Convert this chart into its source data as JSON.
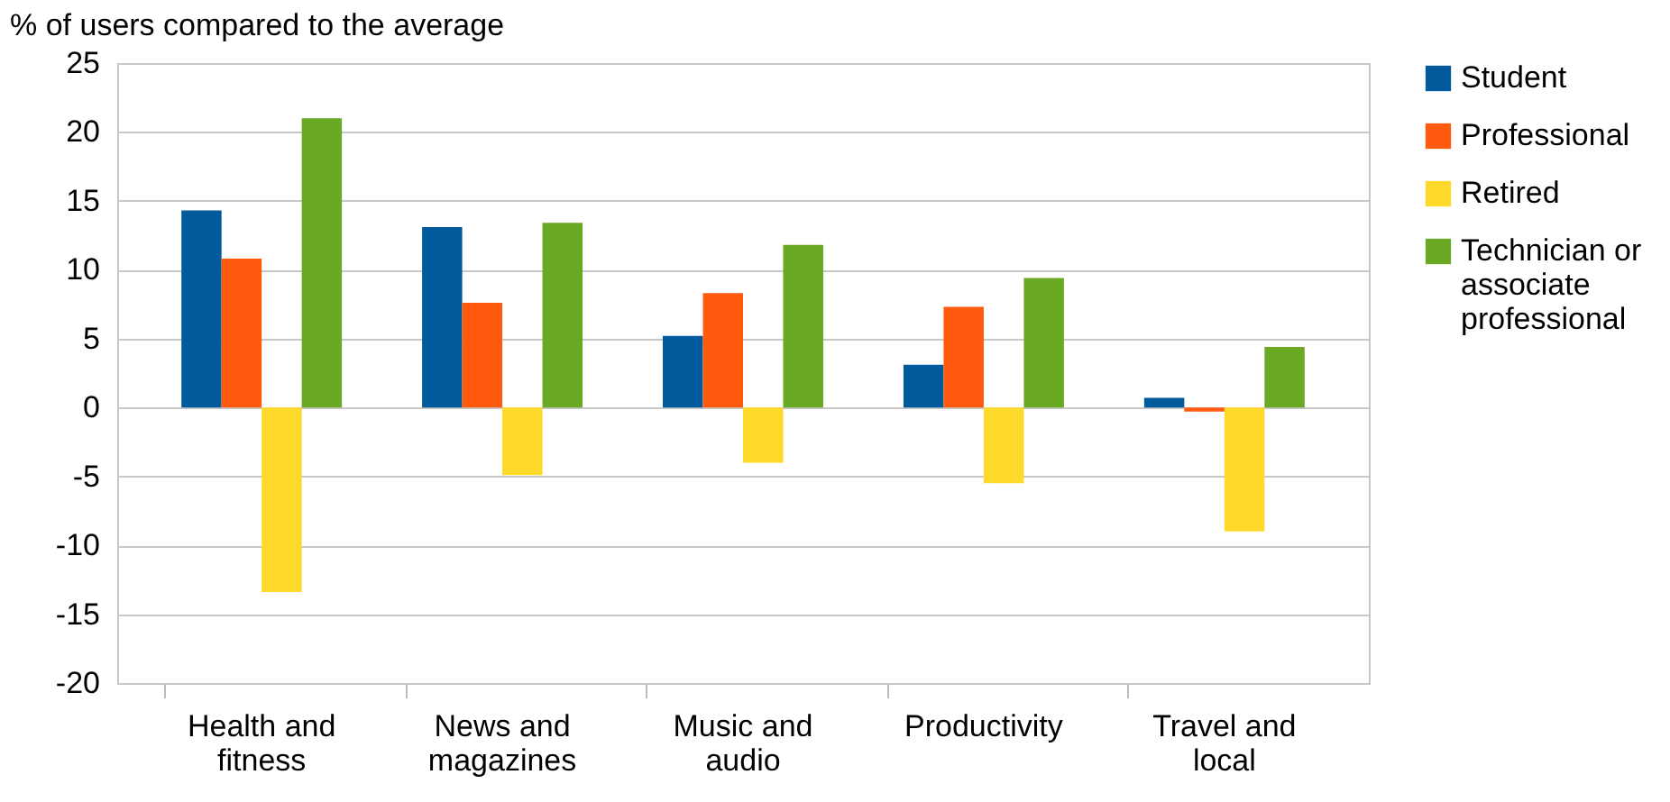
{
  "chart_data": {
    "type": "bar",
    "ylabel": "% of users compared to the average",
    "categories": [
      "Health and fitness",
      "News and magazines",
      "Music and audio",
      "Productivity",
      "Travel and local"
    ],
    "series": [
      {
        "name": "Student",
        "color": "#005a9c",
        "values": [
          14.3,
          13.1,
          5.2,
          3.1,
          0.7
        ]
      },
      {
        "name": "Professional",
        "color": "#ff5a0e",
        "values": [
          10.8,
          7.6,
          8.3,
          7.3,
          -0.3
        ]
      },
      {
        "name": "Retired",
        "color": "#ffd92a",
        "values": [
          -13.4,
          -4.9,
          -4.0,
          -5.5,
          -9.0
        ]
      },
      {
        "name": "Technician or associate professional",
        "color": "#6aa924",
        "values": [
          21.0,
          13.4,
          11.8,
          9.4,
          4.4
        ]
      }
    ],
    "ylim": [
      -20,
      25
    ],
    "yticks": [
      -20,
      -15,
      -10,
      -5,
      0,
      5,
      10,
      15,
      20,
      25
    ],
    "grid": "y",
    "legend": "right"
  }
}
